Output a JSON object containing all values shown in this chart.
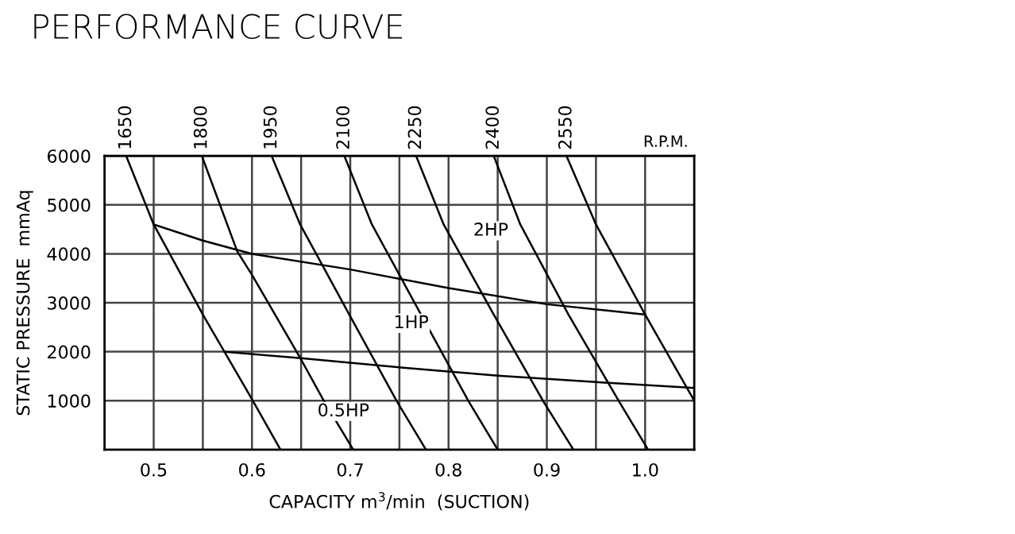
{
  "chart_data": {
    "type": "line",
    "title": "PERFORMANCE CURVE",
    "xlabel": "CAPACITY m$^{3}$/min  (SUCTION)",
    "ylabel": "STATIC PRESSURE  mmAq",
    "xlim": [
      0.45,
      1.05
    ],
    "ylim": [
      0,
      6000
    ],
    "xticks": [
      0.5,
      {
        "value": 0.55,
        "label": null
      },
      0.6,
      {
        "value": 0.65,
        "label": null
      },
      0.7,
      {
        "value": 0.75,
        "label": null
      },
      0.8,
      {
        "value": 0.85,
        "label": null
      },
      0.9,
      {
        "value": 0.95,
        "label": null
      },
      {
        "value": 1.0,
        "label": "1.0"
      }
    ],
    "yticks": [
      1000,
      2000,
      3000,
      4000,
      5000,
      6000
    ],
    "grid": true,
    "marker": "none",
    "line_style": "solid",
    "series": [
      {
        "name": "1650",
        "color": "#000000",
        "x": [
          0.472,
          0.5,
          0.55,
          0.6,
          0.629
        ],
        "values": [
          6000,
          4600,
          2760,
          1030,
          0
        ]
      },
      {
        "name": "1800",
        "color": "#000000",
        "x": [
          0.549,
          0.585,
          0.6,
          0.65,
          0.673,
          0.703
        ],
        "values": [
          6000,
          4050,
          3570,
          1840,
          1000,
          0
        ]
      },
      {
        "name": "1950",
        "color": "#000000",
        "x": [
          0.62,
          0.649,
          0.699,
          0.747,
          0.777
        ],
        "values": [
          6000,
          4600,
          2760,
          1000,
          0
        ]
      },
      {
        "name": "2100",
        "color": "#000000",
        "x": [
          0.694,
          0.722,
          0.772,
          0.82,
          0.85
        ],
        "values": [
          6000,
          4600,
          2760,
          1000,
          0
        ]
      },
      {
        "name": "2250",
        "color": "#000000",
        "x": [
          0.767,
          0.795,
          0.846,
          0.896,
          0.927
        ],
        "values": [
          6000,
          4600,
          2760,
          1000,
          0
        ]
      },
      {
        "name": "2400",
        "color": "#000000",
        "x": [
          0.846,
          0.873,
          0.922,
          0.973,
          1.003
        ],
        "values": [
          6000,
          4600,
          2760,
          1000,
          0
        ]
      },
      {
        "name": "2550",
        "color": "#000000",
        "x": [
          0.92,
          0.95,
          1.0,
          1.05
        ],
        "values": [
          6000,
          4600,
          2760,
          1000
        ]
      },
      {
        "color": "#000000",
        "x": [
          0.5,
          0.55,
          0.6,
          0.7,
          0.8,
          0.9,
          1.0
        ],
        "values": [
          4600,
          4270,
          4000,
          3680,
          3300,
          2970,
          2760
        ]
      },
      {
        "color": "#000000",
        "x": [
          0.572,
          0.65,
          0.75,
          0.85,
          0.95,
          1.05
        ],
        "values": [
          2000,
          1870,
          1680,
          1510,
          1380,
          1260
        ]
      }
    ],
    "annotations": [
      "2HP",
      "1HP",
      "0.5HP",
      "R.P.M."
    ]
  }
}
